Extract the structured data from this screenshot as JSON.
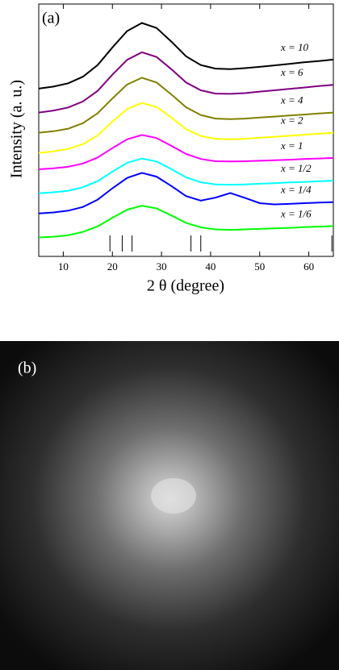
{
  "chart_data": {
    "type": "line",
    "panel_label": "(a)",
    "xlabel": "2 θ (degree)",
    "ylabel": "Intensity (a. u.)",
    "x": [
      5,
      8,
      11,
      14,
      17,
      20,
      23,
      26,
      29,
      32,
      35,
      38,
      41,
      44,
      47,
      50,
      53,
      56,
      59,
      62,
      65
    ],
    "xlim": [
      5,
      65
    ],
    "ylim": [
      0,
      10
    ],
    "xticks": [
      10,
      20,
      30,
      40,
      50,
      60
    ],
    "reference_lines": [
      19.5,
      22,
      24,
      36,
      38,
      64.7
    ],
    "series": [
      {
        "name": "x = 10",
        "color": "#000000",
        "values": [
          6.65,
          6.73,
          6.86,
          7.12,
          7.58,
          8.28,
          8.93,
          9.25,
          9.05,
          8.51,
          7.93,
          7.58,
          7.44,
          7.42,
          7.46,
          7.51,
          7.57,
          7.63,
          7.69,
          7.74,
          7.8
        ]
      },
      {
        "name": "x = 6",
        "color": "#800080",
        "values": [
          5.7,
          5.78,
          5.9,
          6.14,
          6.56,
          7.2,
          7.79,
          8.09,
          7.9,
          7.42,
          6.89,
          6.58,
          6.45,
          6.44,
          6.47,
          6.53,
          6.58,
          6.64,
          6.69,
          6.75,
          6.8
        ]
      },
      {
        "name": "x = 4",
        "color": "#808000",
        "values": [
          4.9,
          4.96,
          5.06,
          5.28,
          5.67,
          6.26,
          6.81,
          7.08,
          6.89,
          6.42,
          5.91,
          5.6,
          5.46,
          5.44,
          5.46,
          5.5,
          5.54,
          5.58,
          5.62,
          5.66,
          5.7
        ]
      },
      {
        "name": "x = 2",
        "color": "#ffff00",
        "values": [
          4.1,
          4.16,
          4.26,
          4.45,
          4.8,
          5.34,
          5.84,
          6.08,
          5.92,
          5.5,
          5.04,
          4.77,
          4.66,
          4.64,
          4.66,
          4.7,
          4.74,
          4.78,
          4.82,
          4.86,
          4.9
        ]
      },
      {
        "name": "x = 1",
        "color": "#ff00ff",
        "values": [
          3.45,
          3.49,
          3.55,
          3.68,
          3.92,
          4.29,
          4.64,
          4.81,
          4.69,
          4.38,
          4.06,
          3.86,
          3.77,
          3.76,
          3.77,
          3.79,
          3.81,
          3.83,
          3.86,
          3.88,
          3.9
        ]
      },
      {
        "name": "x = 1/2",
        "color": "#00ffff",
        "values": [
          2.5,
          2.54,
          2.6,
          2.74,
          2.98,
          3.36,
          3.71,
          3.88,
          3.76,
          3.46,
          3.13,
          2.94,
          2.85,
          2.84,
          2.85,
          2.88,
          2.9,
          2.93,
          2.95,
          2.98,
          3.0
        ]
      },
      {
        "name": "x = 1/4",
        "color": "#0000ff",
        "values": [
          1.7,
          1.74,
          1.81,
          1.96,
          2.25,
          2.7,
          3.11,
          3.31,
          3.16,
          2.79,
          2.39,
          2.21,
          2.33,
          2.51,
          2.32,
          2.11,
          2.06,
          2.08,
          2.11,
          2.13,
          2.15
        ]
      },
      {
        "name": "x = 1/6",
        "color": "#00ff00",
        "values": [
          0.75,
          0.78,
          0.84,
          0.97,
          1.19,
          1.53,
          1.85,
          2.01,
          1.9,
          1.62,
          1.33,
          1.15,
          1.07,
          1.05,
          1.07,
          1.09,
          1.11,
          1.13,
          1.16,
          1.18,
          1.2
        ]
      }
    ]
  },
  "image_panel": {
    "label": "(b)"
  }
}
